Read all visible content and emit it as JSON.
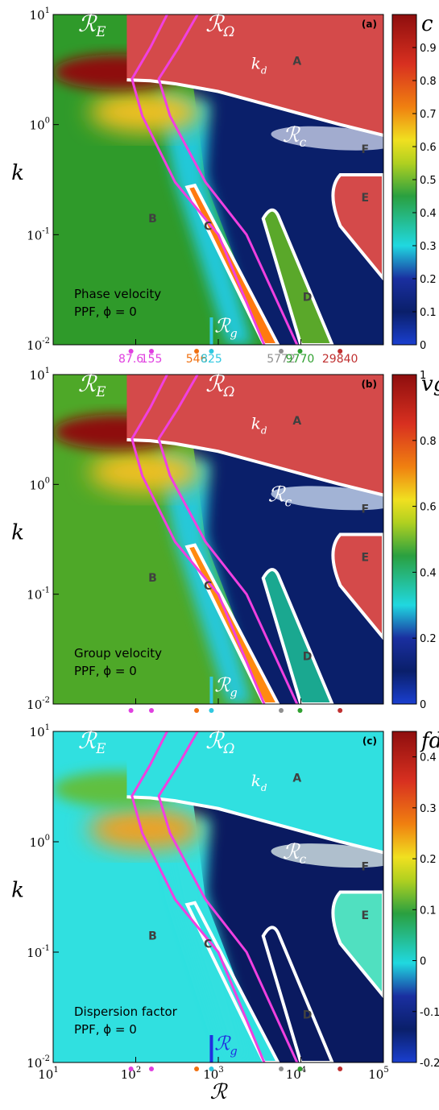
{
  "chart_data": [
    {
      "panel_label": "(a)",
      "type": "heatmap",
      "caption_line1": "Phase velocity",
      "caption_line2": "PPF, ϕ = 0",
      "colorbar_label": "c",
      "colorbar_ticks": [
        "0",
        "0.1",
        "0.2",
        "0.3",
        "0.4",
        "0.5",
        "0.6",
        "0.7",
        "0.8",
        "0.9"
      ],
      "colorbar_range": [
        0,
        1.0
      ],
      "region_colors": {
        "A": "#d44a4a",
        "B": "#2f9a2a",
        "C": "#ff7a10",
        "D": "#5aa82a",
        "E": "#d44a4a",
        "F": "#c8d0e8",
        "deep": "#0a1f6a",
        "mid": "#20c8d8"
      },
      "top_left_color": "#8e0e0e"
    },
    {
      "panel_label": "(b)",
      "type": "heatmap",
      "caption_line1": "Group velocity",
      "caption_line2": "PPF, ϕ = 0",
      "colorbar_label": "vg",
      "colorbar_ticks": [
        "0",
        "0.2",
        "0.4",
        "0.6",
        "0.8",
        "1"
      ],
      "colorbar_range": [
        0,
        1.0
      ],
      "region_colors": {
        "A": "#d44a4a",
        "B": "#4ea828",
        "C": "#ff8a10",
        "D": "#1aa890",
        "E": "#d44a4a",
        "F": "#c8d8f0",
        "deep": "#0a1f6a",
        "mid": "#28c8d8"
      },
      "top_left_color": "#8e0e0e"
    },
    {
      "panel_label": "(c)",
      "type": "heatmap",
      "caption_line1": "Dispersion factor",
      "caption_line2": "PPF, ϕ = 0",
      "colorbar_label": "fd",
      "colorbar_ticks": [
        "-0.2",
        "-0.1",
        "0",
        "0.1",
        "0.2",
        "0.3",
        "0.4"
      ],
      "colorbar_range": [
        -0.2,
        0.45
      ],
      "region_colors": {
        "A": "#30e0e0",
        "B": "#30e0e0",
        "C": "#30e0e0",
        "D": "#0a1a60",
        "E": "#50e0c0",
        "F": "#d8e8e8",
        "deep": "#0a1a60",
        "mid": "#30e0e0"
      },
      "top_left_color": "#60c040"
    }
  ],
  "axes": {
    "xlabel": "ℛ",
    "ylabel": "k",
    "x_ticks": [
      "10",
      "10",
      "10",
      "10",
      "10"
    ],
    "x_tick_exps": [
      "1",
      "2",
      "3",
      "4",
      "5"
    ],
    "y_ticks": [
      "10",
      "10",
      "10",
      "10"
    ],
    "y_tick_exps": [
      "-2",
      "-1",
      "0",
      "1"
    ],
    "xlim": [
      10,
      100000
    ],
    "ylim": [
      0.01,
      10
    ]
  },
  "region_labels": [
    "A",
    "B",
    "C",
    "D",
    "E",
    "F"
  ],
  "curve_labels": {
    "RE": "ℛ",
    "RE_sub": "E",
    "ROmega": "ℛ",
    "ROmega_sub": "Ω",
    "kd": "k",
    "kd_sub": "d",
    "Rc": "ℛ",
    "Rc_sub": "c",
    "Rg": "ℛ",
    "Rg_sub": "g"
  },
  "critical_reynolds": [
    {
      "value": 87.6,
      "label": "87.6",
      "color": "#e040e0"
    },
    {
      "value": 155,
      "label": "155",
      "color": "#e040e0"
    },
    {
      "value": 546,
      "label": "546",
      "color": "#f07010"
    },
    {
      "value": 825,
      "label": "825",
      "color": "#30c8e0"
    },
    {
      "value": 5772,
      "label": "5772",
      "color": "#909090"
    },
    {
      "value": 9770,
      "label": "9770",
      "color": "#30a030"
    },
    {
      "value": 29840,
      "label": "29840",
      "color": "#c03030"
    }
  ],
  "curve_colors": {
    "RE": "#f040e0",
    "ROmega": "#f040e0",
    "kd": "#ffffff"
  }
}
